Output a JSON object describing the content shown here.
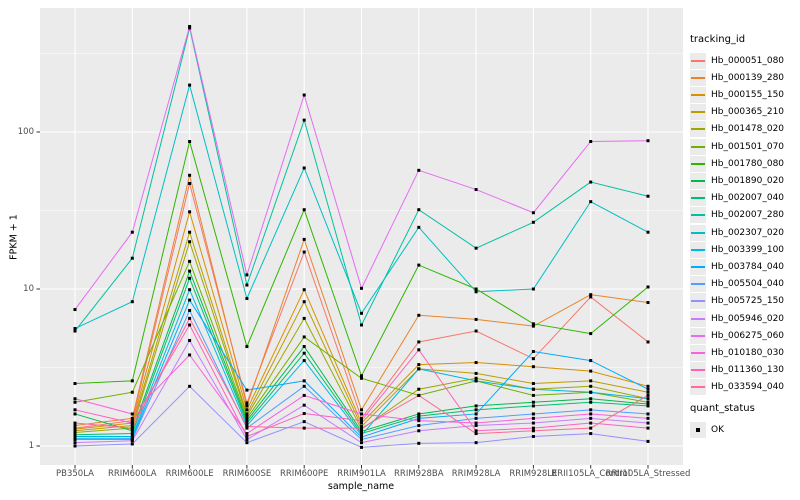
{
  "chart_data": {
    "type": "line",
    "title": "",
    "xlabel": "sample_name",
    "ylabel": "FPKM + 1",
    "y_scale": "log10",
    "y_tick_values": [
      1,
      10,
      100
    ],
    "y_tick_labels": [
      "1",
      "10",
      "100"
    ],
    "y_minor_values": [
      3.162,
      31.62,
      316.2
    ],
    "ylim": [
      0.76,
      620
    ],
    "grid": "on",
    "legend_position": "right",
    "panel_bg": "#EBEBEB",
    "grid_color": "#FFFFFF",
    "tick_color": "#333333",
    "tick_label_color": "#4D4D4D",
    "point_shape": "filled-square",
    "point_color": "#000000",
    "legend_title": "tracking_id",
    "legend2_title": "quant_status",
    "legend2_items": [
      {
        "label": "OK"
      }
    ],
    "categories": [
      "PB350LA",
      "RRIM600LA",
      "RRIM600LE",
      "RRIM600SE",
      "RRIM600PE",
      "RRIM901LA",
      "RRIM928BA",
      "RRIM928LA",
      "RRIM928LE",
      "RRII105LA_Control",
      "RRII105LA_Stressed"
    ],
    "series": [
      {
        "name": "Hb_000051_080",
        "color": "#F8766D",
        "values": [
          1.3,
          1.45,
          47,
          1.88,
          17.2,
          1.5,
          4.6,
          5.4,
          3.6,
          8.9,
          4.6
        ]
      },
      {
        "name": "Hb_000139_280",
        "color": "#E9842C",
        "values": [
          1.35,
          1.5,
          53,
          1.8,
          20.7,
          1.7,
          6.8,
          6.4,
          5.8,
          9.2,
          8.2
        ]
      },
      {
        "name": "Hb_000155_150",
        "color": "#D69100",
        "values": [
          1.28,
          1.4,
          31,
          1.7,
          9.9,
          1.4,
          3.3,
          3.4,
          3.2,
          3.0,
          2.4
        ]
      },
      {
        "name": "Hb_000365_210",
        "color": "#BC9D00",
        "values": [
          1.25,
          1.35,
          23,
          1.6,
          8.3,
          1.33,
          3.1,
          2.9,
          2.5,
          2.6,
          2.2
        ]
      },
      {
        "name": "Hb_001478_020",
        "color": "#9CA700",
        "values": [
          1.22,
          1.3,
          20,
          1.55,
          6.5,
          1.28,
          2.3,
          2.7,
          2.3,
          2.4,
          2.0
        ]
      },
      {
        "name": "Hb_001501_070",
        "color": "#6FB000",
        "values": [
          1.9,
          2.2,
          15,
          1.5,
          4.95,
          2.7,
          2.1,
          2.6,
          2.1,
          2.2,
          1.9
        ]
      },
      {
        "name": "Hb_001780_080",
        "color": "#2FB600",
        "values": [
          2.5,
          2.6,
          87,
          4.3,
          32,
          2.8,
          14.2,
          10.0,
          6.0,
          5.2,
          10.3
        ]
      },
      {
        "name": "Hb_001890_020",
        "color": "#00BB4C",
        "values": [
          1.6,
          1.25,
          13,
          1.45,
          4.3,
          1.24,
          1.6,
          1.8,
          1.9,
          2.0,
          1.85
        ]
      },
      {
        "name": "Hb_002007_040",
        "color": "#00BF74",
        "values": [
          1.18,
          1.2,
          11.7,
          1.4,
          3.9,
          1.2,
          1.55,
          1.7,
          1.8,
          1.9,
          1.8
        ]
      },
      {
        "name": "Hb_002007_280",
        "color": "#00C19F",
        "values": [
          5.4,
          15.7,
          460,
          10.6,
          119,
          5.9,
          32,
          18.2,
          26.6,
          48,
          39
        ]
      },
      {
        "name": "Hb_002307_020",
        "color": "#00BFC4",
        "values": [
          5.6,
          8.3,
          199,
          8.7,
          59,
          7.0,
          24.7,
          9.6,
          10.0,
          36,
          23
        ]
      },
      {
        "name": "Hb_003399_100",
        "color": "#00B9E3",
        "values": [
          1.15,
          1.15,
          9.9,
          1.35,
          3.5,
          1.17,
          3.1,
          2.6,
          2.3,
          2.2,
          2.0
        ]
      },
      {
        "name": "Hb_003784_040",
        "color": "#00ACFC",
        "values": [
          1.12,
          1.12,
          8.5,
          2.27,
          2.6,
          1.14,
          1.5,
          1.6,
          4.0,
          3.5,
          2.3
        ]
      },
      {
        "name": "Hb_005504_040",
        "color": "#529EFF",
        "values": [
          1.1,
          1.1,
          7.3,
          1.3,
          2.4,
          1.1,
          1.35,
          1.5,
          1.6,
          1.7,
          1.6
        ]
      },
      {
        "name": "Hb_005725_150",
        "color": "#9590FF",
        "values": [
          1.0,
          1.03,
          2.4,
          1.05,
          1.43,
          0.98,
          1.04,
          1.05,
          1.15,
          1.2,
          1.07
        ]
      },
      {
        "name": "Hb_005946_020",
        "color": "#C77CFF",
        "values": [
          1.05,
          1.08,
          4.7,
          1.1,
          1.82,
          1.05,
          1.25,
          1.35,
          1.4,
          1.5,
          1.4
        ]
      },
      {
        "name": "Hb_006275_060",
        "color": "#E76BF3",
        "values": [
          7.4,
          23.0,
          470,
          12.3,
          172,
          10.1,
          57,
          43,
          30.6,
          87,
          88
        ]
      },
      {
        "name": "Hb_010180_030",
        "color": "#FA62DB",
        "values": [
          2.0,
          1.6,
          3.8,
          1.2,
          2.1,
          1.6,
          1.45,
          1.4,
          1.5,
          1.6,
          1.5
        ]
      },
      {
        "name": "Hb_011360_130",
        "color": "#FF62BC",
        "values": [
          1.7,
          1.4,
          5.9,
          1.15,
          1.61,
          1.45,
          4.1,
          1.25,
          1.3,
          1.4,
          1.3
        ]
      },
      {
        "name": "Hb_033594_040",
        "color": "#FF6A98",
        "values": [
          1.4,
          1.3,
          6.5,
          1.33,
          1.3,
          1.3,
          2.1,
          1.2,
          1.25,
          1.3,
          2.1
        ]
      }
    ]
  }
}
